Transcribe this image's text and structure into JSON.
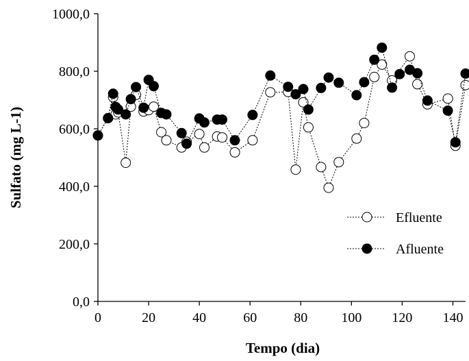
{
  "chart_data": {
    "type": "scatter",
    "xlabel": "Tempo (dia)",
    "ylabel": "Sulfato (mg L-1)",
    "xlim": [
      0,
      145
    ],
    "ylim": [
      0,
      1000
    ],
    "x_ticks": [
      "0",
      "20",
      "40",
      "60",
      "80",
      "100",
      "120",
      "140"
    ],
    "y_ticks": [
      "0,0",
      "200,0",
      "400,0",
      "600,0",
      "800,0",
      "1000,0"
    ],
    "grid": false,
    "legend_position": "right",
    "line_style": "dotted",
    "series": [
      {
        "name": "Efluente",
        "marker": "open-circle",
        "color": "#000000",
        "points": [
          [
            0,
            577
          ],
          [
            4,
            637
          ],
          [
            6,
            710
          ],
          [
            7,
            650
          ],
          [
            8,
            657
          ],
          [
            11,
            482
          ],
          [
            13,
            677
          ],
          [
            15,
            718
          ],
          [
            18,
            660
          ],
          [
            20,
            665
          ],
          [
            22,
            677
          ],
          [
            25,
            588
          ],
          [
            27,
            560
          ],
          [
            33,
            535
          ],
          [
            35,
            555
          ],
          [
            40,
            582
          ],
          [
            42,
            535
          ],
          [
            47,
            573
          ],
          [
            49,
            570
          ],
          [
            54,
            518
          ],
          [
            61,
            560
          ],
          [
            68,
            727
          ],
          [
            75,
            728
          ],
          [
            78,
            458
          ],
          [
            81,
            692
          ],
          [
            83,
            605
          ],
          [
            88,
            467
          ],
          [
            91,
            395
          ],
          [
            95,
            484
          ],
          [
            102,
            566
          ],
          [
            105,
            620
          ],
          [
            109,
            780
          ],
          [
            112,
            823
          ],
          [
            116,
            768
          ],
          [
            123,
            852
          ],
          [
            126,
            755
          ],
          [
            130,
            685
          ],
          [
            138,
            705
          ],
          [
            141,
            541
          ],
          [
            145,
            752
          ]
        ]
      },
      {
        "name": "Afluente",
        "marker": "filled-circle",
        "color": "#000000",
        "points": [
          [
            0,
            577
          ],
          [
            4,
            637
          ],
          [
            6,
            722
          ],
          [
            7,
            676
          ],
          [
            8,
            667
          ],
          [
            11,
            650
          ],
          [
            13,
            703
          ],
          [
            15,
            745
          ],
          [
            18,
            673
          ],
          [
            20,
            770
          ],
          [
            22,
            748
          ],
          [
            25,
            655
          ],
          [
            27,
            650
          ],
          [
            33,
            585
          ],
          [
            35,
            548
          ],
          [
            40,
            636
          ],
          [
            42,
            622
          ],
          [
            47,
            632
          ],
          [
            49,
            632
          ],
          [
            54,
            560
          ],
          [
            61,
            648
          ],
          [
            68,
            785
          ],
          [
            75,
            746
          ],
          [
            78,
            720
          ],
          [
            81,
            738
          ],
          [
            83,
            667
          ],
          [
            88,
            742
          ],
          [
            91,
            778
          ],
          [
            95,
            760
          ],
          [
            102,
            717
          ],
          [
            105,
            762
          ],
          [
            109,
            840
          ],
          [
            112,
            882
          ],
          [
            116,
            743
          ],
          [
            119,
            790
          ],
          [
            123,
            805
          ],
          [
            126,
            793
          ],
          [
            130,
            698
          ],
          [
            138,
            663
          ],
          [
            141,
            553
          ],
          [
            145,
            792
          ]
        ]
      }
    ]
  }
}
